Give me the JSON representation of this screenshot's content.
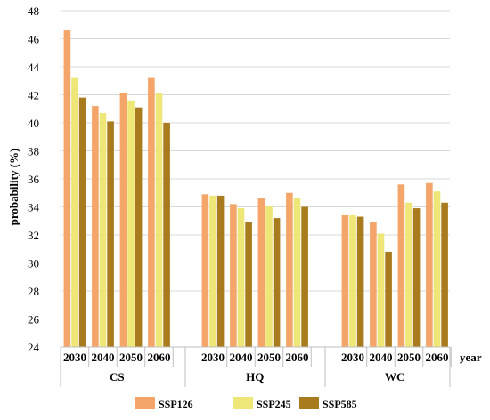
{
  "chart_data": {
    "type": "bar",
    "ylabel": "probability (%)",
    "xlabel": "year",
    "ylim": [
      24,
      48
    ],
    "yticks": [
      24,
      26,
      28,
      30,
      32,
      34,
      36,
      38,
      40,
      42,
      44,
      46,
      48
    ],
    "grid": "horizontal",
    "legend_position": "bottom",
    "groups": [
      {
        "name": "CS",
        "categories": [
          "2030",
          "2040",
          "2050",
          "2060"
        ],
        "series": [
          {
            "name": "SSP126",
            "values": [
              46.6,
              41.2,
              42.1,
              43.2
            ]
          },
          {
            "name": "SSP245",
            "values": [
              43.2,
              40.7,
              41.6,
              42.1
            ]
          },
          {
            "name": "SSP585",
            "values": [
              41.8,
              40.1,
              41.1,
              40.0
            ]
          }
        ]
      },
      {
        "name": "HQ",
        "categories": [
          "2030",
          "2040",
          "2050",
          "2060"
        ],
        "series": [
          {
            "name": "SSP126",
            "values": [
              34.9,
              34.2,
              34.6,
              35.0
            ]
          },
          {
            "name": "SSP245",
            "values": [
              34.8,
              33.9,
              34.1,
              34.6
            ]
          },
          {
            "name": "SSP585",
            "values": [
              34.8,
              32.9,
              33.2,
              34.0
            ]
          }
        ]
      },
      {
        "name": "WC",
        "categories": [
          "2030",
          "2040",
          "2050",
          "2060"
        ],
        "series": [
          {
            "name": "SSP126",
            "values": [
              33.4,
              32.9,
              35.6,
              35.7
            ]
          },
          {
            "name": "SSP245",
            "values": [
              33.4,
              32.1,
              34.3,
              35.1
            ]
          },
          {
            "name": "SSP585",
            "values": [
              33.3,
              30.8,
              33.9,
              34.3
            ]
          }
        ]
      }
    ],
    "legend": [
      "SSP126",
      "SSP245",
      "SSP585"
    ],
    "colors": {
      "SSP126": "#F4A56A",
      "SSP245": "#EEE676",
      "SSP585": "#A87B1E"
    }
  }
}
